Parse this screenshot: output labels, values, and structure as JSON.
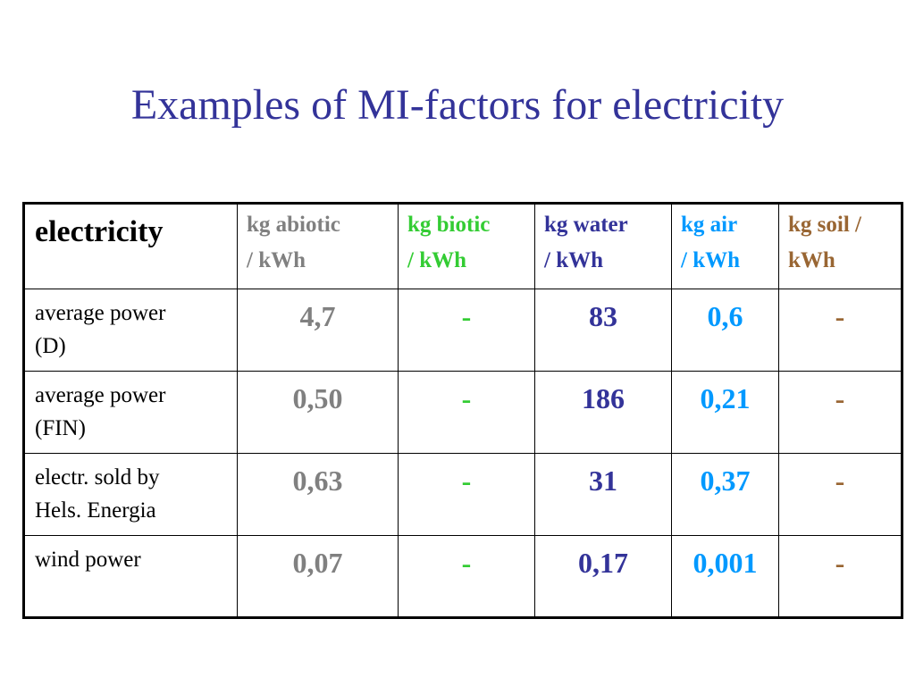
{
  "slide": {
    "title": "Examples of MI-factors for electricity"
  },
  "colors": {
    "title": "#333399",
    "abiotic": "#808080",
    "biotic": "#33cc33",
    "water": "#333399",
    "air": "#0099ff",
    "soil": "#996633"
  },
  "table": {
    "corner": "electricity",
    "columns": [
      {
        "line1": "kg abiotic",
        "line2": "/ kWh"
      },
      {
        "line1": "kg biotic",
        "line2": "/ kWh"
      },
      {
        "line1": "kg water",
        "line2": "/ kWh"
      },
      {
        "line1": "kg air",
        "line2": "/ kWh"
      },
      {
        "line1": "kg soil /",
        "line2": "kWh"
      }
    ],
    "rows": [
      {
        "label_line1": "average power",
        "label_line2": "(D)",
        "values": [
          "4,7",
          "-",
          "83",
          "0,6",
          "-"
        ]
      },
      {
        "label_line1": "average power",
        "label_line2": "(FIN)",
        "values": [
          "0,50",
          "-",
          "186",
          "0,21",
          "-"
        ]
      },
      {
        "label_line1": "electr. sold by",
        "label_line2": "Hels. Energia",
        "values": [
          "0,63",
          "-",
          "31",
          "0,37",
          "-"
        ]
      },
      {
        "label_line1": "wind power",
        "label_line2": "",
        "values": [
          "0,07",
          "-",
          "0,17",
          "0,001",
          "-"
        ]
      }
    ]
  }
}
